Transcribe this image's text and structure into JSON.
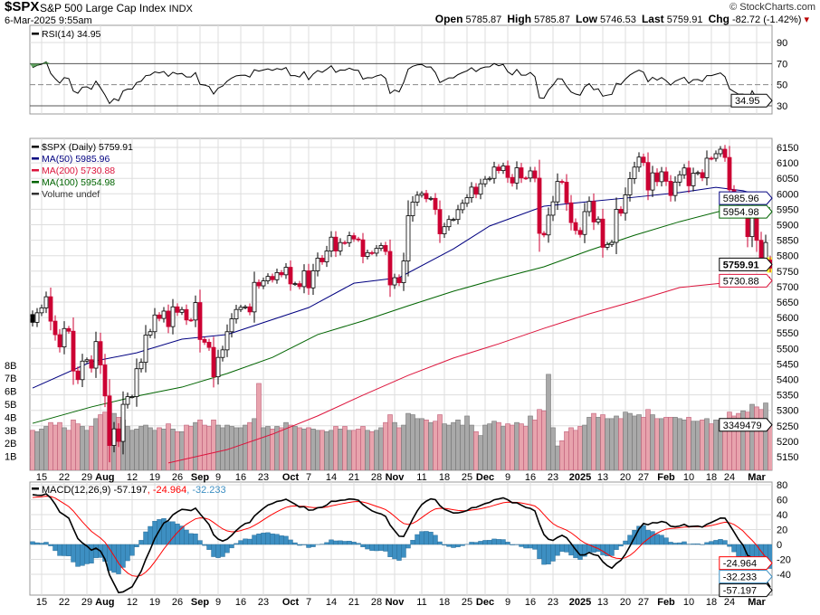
{
  "header": {
    "symbol": "$SPX",
    "name": "S&P 500 Large Cap Index",
    "exchange": "INDX",
    "datetime": "6-Mar-2025 9:55am",
    "credit": "© StockCharts.com",
    "open_label": "Open",
    "open": "5785.87",
    "high_label": "High",
    "high": "5785.87",
    "low_label": "Low",
    "low": "5746.53",
    "last_label": "Last",
    "last": "5759.91",
    "chg_label": "Chg",
    "chg": "-82.72 (-1.42%)"
  },
  "legend": {
    "rsi": "RSI(14) 34.95",
    "price": "$SPX (Daily) 5759.91",
    "ma50": "MA(50) 5985.96",
    "ma200": "MA(200) 5730.88",
    "ma100": "MA(100) 5954.98",
    "volume": "Volume undef",
    "macd_name": "MACD(12,26,9) -57.197",
    "macd_signal": ", -24.964",
    "macd_hist": ", -32.233"
  },
  "tags": {
    "rsi": "34.95",
    "last": "5759.91",
    "ma50": "5985.96",
    "ma100": "5954.98",
    "ma200": "5730.88",
    "volume": "3349479",
    "macd": "-57.197",
    "signal": "-24.964",
    "hist": "-32.233"
  },
  "colors": {
    "up": "#000000",
    "down": "#cc0033",
    "ma50": "#000080",
    "ma100": "#006400",
    "ma200": "#dc143c",
    "vol_up": "#a9a9a9",
    "vol_down": "#e8a3ad",
    "hist": "#3d8fc2",
    "signal": "#ff0000",
    "grid": "#dddddd"
  },
  "chart_data": {
    "type": "candlestick",
    "title": "$SPX S&P 500 Large Cap Index INDX (Daily)",
    "first_date": "2024-07-11",
    "last_date": "2025-03-06",
    "last_open": 5785.87,
    "closes": [
      5584.54,
      5615.35,
      5631.22,
      5667.2,
      5588.27,
      5544.59,
      5505.0,
      5564.41,
      5555.74,
      5427.13,
      5399.22,
      5459.1,
      5463.54,
      5436.44,
      5522.3,
      5446.68,
      5346.56,
      5186.33,
      5240.03,
      5199.5,
      5319.31,
      5344.16,
      5344.39,
      5434.43,
      5455.21,
      5543.22,
      5554.25,
      5608.25,
      5597.12,
      5620.85,
      5570.64,
      5634.61,
      5616.84,
      5625.8,
      5592.18,
      5591.96,
      5648.4,
      5528.93,
      5520.07,
      5503.41,
      5408.42,
      5471.05,
      5495.52,
      5554.13,
      5595.76,
      5626.02,
      5633.09,
      5634.58,
      5618.26,
      5713.64,
      5702.55,
      5718.57,
      5732.93,
      5722.26,
      5745.37,
      5738.17,
      5762.48,
      5708.75,
      5709.54,
      5699.94,
      5751.07,
      5695.94,
      5751.13,
      5792.04,
      5780.05,
      5815.03,
      5859.85,
      5815.26,
      5842.47,
      5841.47,
      5864.67,
      5853.98,
      5851.2,
      5797.42,
      5809.86,
      5808.12,
      5823.52,
      5832.92,
      5813.67,
      5705.45,
      5728.8,
      5712.69,
      5782.76,
      5929.04,
      5973.1,
      5995.54,
      6001.35,
      5983.99,
      5985.38,
      5949.17,
      5870.62,
      5893.62,
      5916.98,
      5917.11,
      5948.71,
      5969.34,
      5987.37,
      6021.63,
      5998.74,
      6032.38,
      6047.15,
      6049.88,
      6086.49,
      6075.11,
      6090.27,
      6052.85,
      6034.91,
      6084.19,
      6051.25,
      6051.09,
      6074.08,
      6050.61,
      5872.16,
      5867.08,
      5930.85,
      5974.07,
      6040.04,
      6037.59,
      5970.84,
      5906.94,
      5881.63,
      5868.55,
      5942.47,
      5975.38,
      5909.03,
      5918.25,
      5827.04,
      5836.22,
      5842.91,
      5949.91,
      5937.34,
      5996.66,
      6049.24,
      6086.37,
      6118.71,
      6101.24,
      6012.28,
      6067.7,
      6039.31,
      6071.17,
      6040.53,
      5994.57,
      6037.88,
      6061.48,
      6083.57,
      6025.99,
      6066.44,
      6068.5,
      6051.97,
      6115.07,
      6114.63,
      6129.58,
      6144.15,
      6117.52,
      6013.13,
      5983.25,
      5955.25,
      5956.06,
      5861.57,
      5954.5,
      5849.72,
      5778.15,
      5842.63,
      5759.91
    ],
    "volume_billions": [
      3.0,
      2.9,
      3.1,
      3.3,
      3.6,
      3.4,
      3.6,
      3.2,
      3.0,
      3.8,
      3.5,
      3.3,
      3.0,
      3.3,
      3.9,
      4.2,
      4.4,
      5.1,
      4.3,
      4.0,
      3.8,
      3.3,
      3.0,
      3.1,
      3.3,
      3.4,
      3.2,
      3.0,
      3.2,
      3.1,
      3.5,
      3.1,
      2.9,
      2.9,
      3.4,
      3.3,
      3.6,
      3.8,
      3.4,
      3.3,
      3.8,
      3.4,
      3.2,
      3.4,
      3.3,
      3.2,
      3.2,
      3.4,
      3.6,
      3.9,
      6.6,
      3.2,
      3.3,
      3.1,
      3.3,
      3.2,
      3.6,
      3.4,
      3.3,
      3.2,
      3.1,
      3.2,
      3.1,
      3.0,
      3.0,
      2.9,
      3.0,
      3.3,
      3.1,
      3.3,
      3.0,
      3.0,
      3.1,
      3.3,
      3.0,
      2.9,
      3.0,
      3.2,
      3.6,
      4.2,
      3.6,
      3.2,
      3.4,
      4.3,
      4.2,
      3.9,
      3.9,
      3.8,
      3.6,
      3.7,
      4.2,
      3.5,
      3.4,
      3.6,
      3.8,
      3.4,
      4.1,
      3.4,
      2.9,
      2.6,
      3.4,
      3.5,
      3.7,
      3.6,
      3.3,
      3.5,
      3.4,
      3.6,
      3.5,
      3.3,
      4.1,
      3.8,
      4.6,
      4.5,
      7.3,
      3.2,
      1.8,
      2.2,
      2.9,
      3.2,
      3.0,
      3.3,
      3.4,
      4.0,
      4.3,
      4.0,
      4.2,
      3.9,
      3.9,
      4.1,
      3.9,
      4.4,
      4.3,
      4.1,
      4.2,
      4.0,
      4.6,
      4.2,
      3.9,
      3.9,
      4.0,
      4.0,
      4.0,
      3.9,
      3.8,
      4.0,
      3.7,
      3.7,
      3.8,
      3.9,
      3.5,
      3.8,
      3.8,
      3.7,
      4.4,
      4.1,
      4.3,
      4.5,
      4.4,
      5.0,
      4.8,
      4.6,
      5.1,
      3.35
    ],
    "moving_averages": [
      {
        "name": "MA(50)",
        "knots": [
          [
            0,
            5372
          ],
          [
            13,
            5457
          ],
          [
            23,
            5486
          ],
          [
            33,
            5530
          ],
          [
            43,
            5545
          ],
          [
            61,
            5632
          ],
          [
            71,
            5711
          ],
          [
            81,
            5729
          ],
          [
            93,
            5822
          ],
          [
            101,
            5896
          ],
          [
            113,
            5960
          ],
          [
            123,
            5975
          ],
          [
            133,
            5989
          ],
          [
            143,
            6004
          ],
          [
            151,
            6021
          ],
          [
            157,
            6010
          ],
          [
            163,
            5985.96
          ]
        ]
      },
      {
        "name": "MA(100)",
        "knots": [
          [
            0,
            5258
          ],
          [
            13,
            5311
          ],
          [
            23,
            5346
          ],
          [
            33,
            5375
          ],
          [
            43,
            5419
          ],
          [
            53,
            5471
          ],
          [
            63,
            5545
          ],
          [
            73,
            5589
          ],
          [
            83,
            5638
          ],
          [
            93,
            5685
          ],
          [
            103,
            5726
          ],
          [
            113,
            5764
          ],
          [
            123,
            5817
          ],
          [
            133,
            5866
          ],
          [
            143,
            5910
          ],
          [
            153,
            5948
          ],
          [
            163,
            5954.98
          ]
        ]
      },
      {
        "name": "MA(200)",
        "knots": [
          [
            30,
            5130
          ],
          [
            43,
            5173
          ],
          [
            53,
            5223
          ],
          [
            63,
            5282
          ],
          [
            73,
            5349
          ],
          [
            83,
            5413
          ],
          [
            93,
            5469
          ],
          [
            103,
            5515
          ],
          [
            113,
            5565
          ],
          [
            123,
            5612
          ],
          [
            133,
            5653
          ],
          [
            143,
            5697
          ],
          [
            153,
            5712
          ],
          [
            163,
            5730.88
          ]
        ]
      }
    ],
    "rsi": {
      "period": 14,
      "seed_avg_gain": 25,
      "seed_avg_loss": 9,
      "last": 34.95,
      "ticks": [
        30,
        50,
        70,
        90
      ],
      "levels": [
        30,
        50,
        70
      ]
    },
    "macd": {
      "fast": 12,
      "slow": 26,
      "signal": 9,
      "seed_ema_fast": 5560,
      "seed_ema_slow": 5490,
      "seed_signal": 62,
      "last_macd": -57.197,
      "last_signal": -24.964,
      "last_hist": -32.233,
      "ticks": [
        -40,
        -20,
        0,
        20,
        40,
        60,
        80
      ]
    },
    "price_ticks": [
      5150,
      5200,
      5250,
      5300,
      5350,
      5400,
      5450,
      5500,
      5550,
      5600,
      5650,
      5700,
      5750,
      5800,
      5850,
      5900,
      5950,
      6000,
      6050,
      6100,
      6150
    ],
    "volume_ticks": [
      "1B",
      "2B",
      "3B",
      "4B",
      "5B",
      "6B",
      "7B",
      "8B"
    ],
    "x_ticks": [
      [
        2,
        "15"
      ],
      [
        7,
        "22"
      ],
      [
        12,
        "29"
      ],
      [
        15,
        "Aug"
      ],
      [
        22,
        "12"
      ],
      [
        27,
        "19"
      ],
      [
        32,
        "26"
      ],
      [
        37,
        "Sep"
      ],
      [
        41,
        "9"
      ],
      [
        46,
        "16"
      ],
      [
        51,
        "23"
      ],
      [
        57,
        "Oct"
      ],
      [
        61,
        "7"
      ],
      [
        66,
        "14"
      ],
      [
        71,
        "21"
      ],
      [
        76,
        "28"
      ],
      [
        80,
        "Nov"
      ],
      [
        86,
        "11"
      ],
      [
        91,
        "18"
      ],
      [
        96,
        "25"
      ],
      [
        100,
        "Dec"
      ],
      [
        105,
        "9"
      ],
      [
        110,
        "16"
      ],
      [
        115,
        "23"
      ],
      [
        121,
        "2025"
      ],
      [
        126,
        "13"
      ],
      [
        131,
        "20"
      ],
      [
        135,
        "27"
      ],
      [
        140,
        "Feb"
      ],
      [
        145,
        "10"
      ],
      [
        150,
        "18"
      ],
      [
        154,
        "24"
      ],
      [
        160,
        "Mar"
      ]
    ]
  }
}
